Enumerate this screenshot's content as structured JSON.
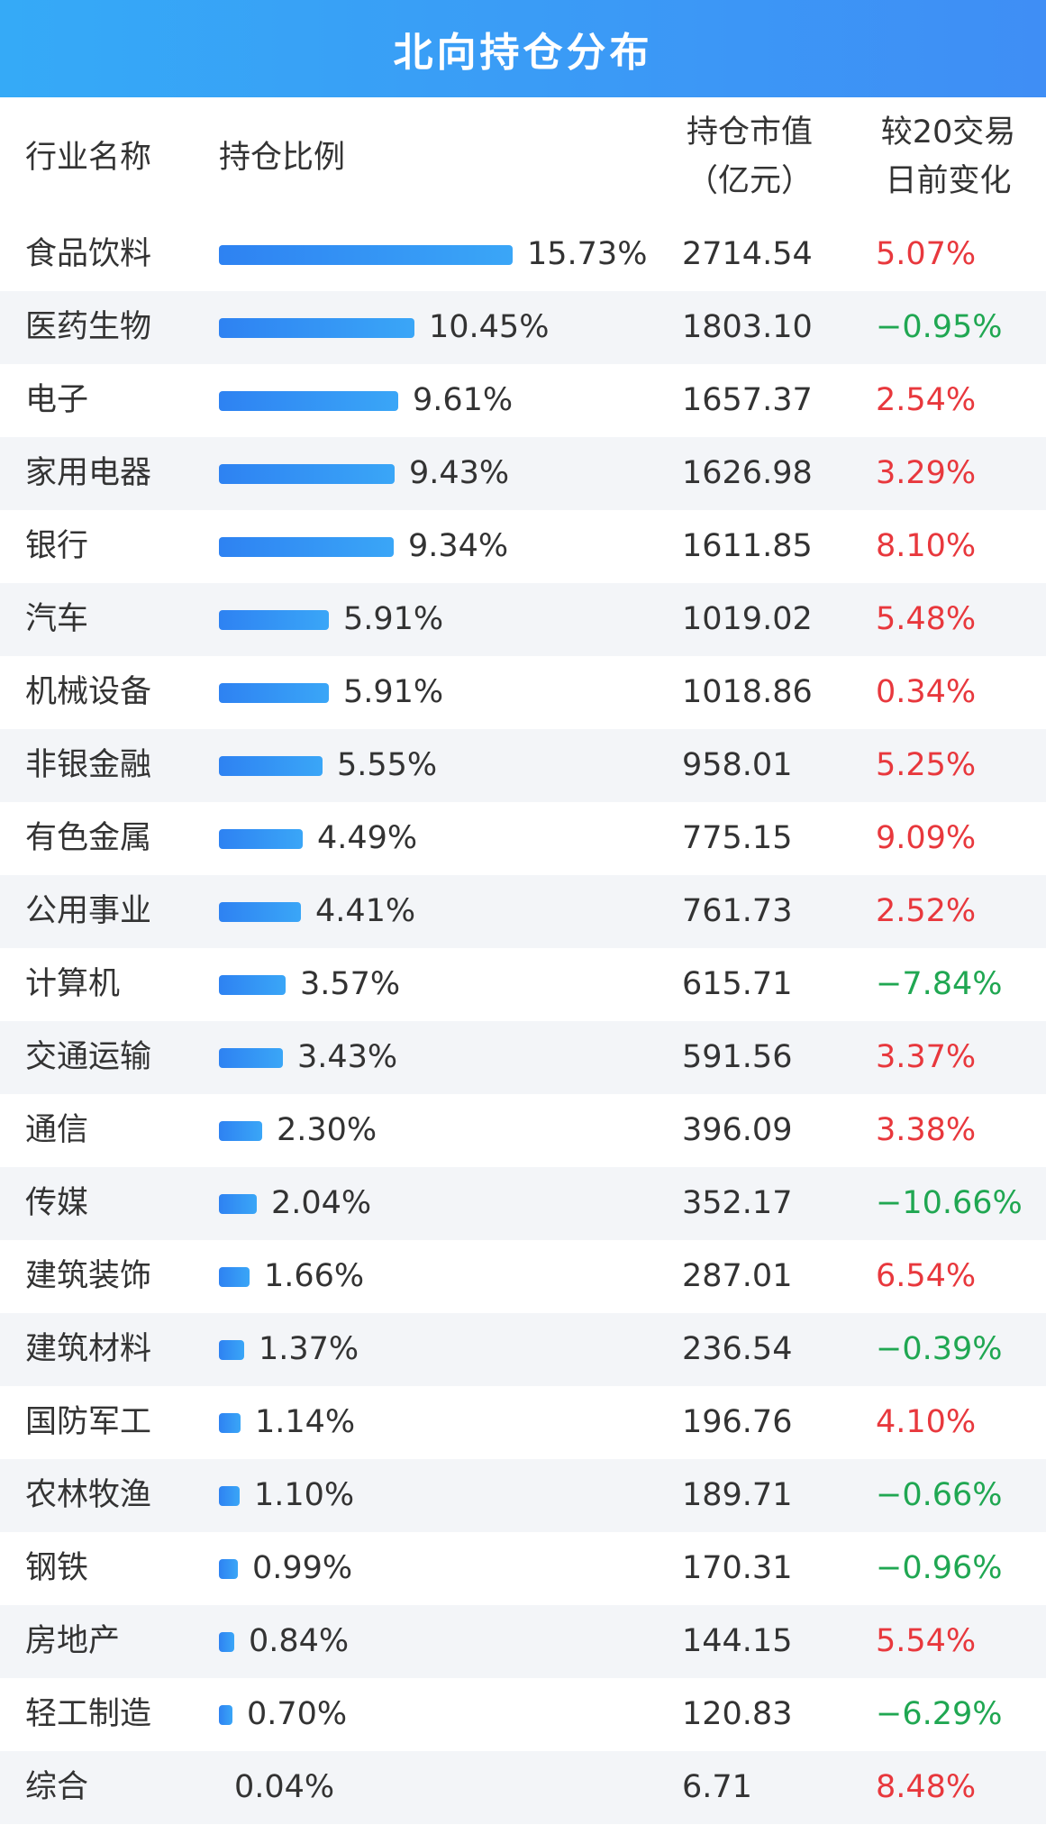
{
  "title": "北向持仓分布",
  "headers": {
    "industry": "行业名称",
    "ratio": "持仓比例",
    "value_line1": "持仓市值",
    "value_line2": "（亿元）",
    "change_line1": "较20交易",
    "change_line2": "日前变化"
  },
  "colors": {
    "up": "#e8383d",
    "down": "#20a752",
    "bar": "#3a95f5",
    "title_bg": "#3f9cf6"
  },
  "chart_data": {
    "type": "table",
    "title": "北向持仓分布",
    "columns": [
      "行业名称",
      "持仓比例",
      "持仓市值（亿元）",
      "较20交易日前变化"
    ],
    "rows": [
      {
        "industry": "食品饮料",
        "ratio": 15.73,
        "ratio_label": "15.73%",
        "value": "2714.54",
        "change": 5.07,
        "change_label": "5.07%"
      },
      {
        "industry": "医药生物",
        "ratio": 10.45,
        "ratio_label": "10.45%",
        "value": "1803.10",
        "change": -0.95,
        "change_label": "−0.95%"
      },
      {
        "industry": "电子",
        "ratio": 9.61,
        "ratio_label": "9.61%",
        "value": "1657.37",
        "change": 2.54,
        "change_label": "2.54%"
      },
      {
        "industry": "家用电器",
        "ratio": 9.43,
        "ratio_label": "9.43%",
        "value": "1626.98",
        "change": 3.29,
        "change_label": "3.29%"
      },
      {
        "industry": "银行",
        "ratio": 9.34,
        "ratio_label": "9.34%",
        "value": "1611.85",
        "change": 8.1,
        "change_label": "8.10%"
      },
      {
        "industry": "汽车",
        "ratio": 5.91,
        "ratio_label": "5.91%",
        "value": "1019.02",
        "change": 5.48,
        "change_label": "5.48%"
      },
      {
        "industry": "机械设备",
        "ratio": 5.91,
        "ratio_label": "5.91%",
        "value": "1018.86",
        "change": 0.34,
        "change_label": "0.34%"
      },
      {
        "industry": "非银金融",
        "ratio": 5.55,
        "ratio_label": "5.55%",
        "value": "958.01",
        "change": 5.25,
        "change_label": "5.25%"
      },
      {
        "industry": "有色金属",
        "ratio": 4.49,
        "ratio_label": "4.49%",
        "value": "775.15",
        "change": 9.09,
        "change_label": "9.09%"
      },
      {
        "industry": "公用事业",
        "ratio": 4.41,
        "ratio_label": "4.41%",
        "value": "761.73",
        "change": 2.52,
        "change_label": "2.52%"
      },
      {
        "industry": "计算机",
        "ratio": 3.57,
        "ratio_label": "3.57%",
        "value": "615.71",
        "change": -7.84,
        "change_label": "−7.84%"
      },
      {
        "industry": "交通运输",
        "ratio": 3.43,
        "ratio_label": "3.43%",
        "value": "591.56",
        "change": 3.37,
        "change_label": "3.37%"
      },
      {
        "industry": "通信",
        "ratio": 2.3,
        "ratio_label": "2.30%",
        "value": "396.09",
        "change": 3.38,
        "change_label": "3.38%"
      },
      {
        "industry": "传媒",
        "ratio": 2.04,
        "ratio_label": "2.04%",
        "value": "352.17",
        "change": -10.66,
        "change_label": "−10.66%"
      },
      {
        "industry": "建筑装饰",
        "ratio": 1.66,
        "ratio_label": "1.66%",
        "value": "287.01",
        "change": 6.54,
        "change_label": "6.54%"
      },
      {
        "industry": "建筑材料",
        "ratio": 1.37,
        "ratio_label": "1.37%",
        "value": "236.54",
        "change": -0.39,
        "change_label": "−0.39%"
      },
      {
        "industry": "国防军工",
        "ratio": 1.14,
        "ratio_label": "1.14%",
        "value": "196.76",
        "change": 4.1,
        "change_label": "4.10%"
      },
      {
        "industry": "农林牧渔",
        "ratio": 1.1,
        "ratio_label": "1.10%",
        "value": "189.71",
        "change": -0.66,
        "change_label": "−0.66%"
      },
      {
        "industry": "钢铁",
        "ratio": 0.99,
        "ratio_label": "0.99%",
        "value": "170.31",
        "change": -0.96,
        "change_label": "−0.96%"
      },
      {
        "industry": "房地产",
        "ratio": 0.84,
        "ratio_label": "0.84%",
        "value": "144.15",
        "change": 5.54,
        "change_label": "5.54%"
      },
      {
        "industry": "轻工制造",
        "ratio": 0.7,
        "ratio_label": "0.70%",
        "value": "120.83",
        "change": -6.29,
        "change_label": "−6.29%"
      },
      {
        "industry": "综合",
        "ratio": 0.04,
        "ratio_label": "0.04%",
        "value": "6.71",
        "change": 8.48,
        "change_label": "8.48%"
      }
    ]
  }
}
